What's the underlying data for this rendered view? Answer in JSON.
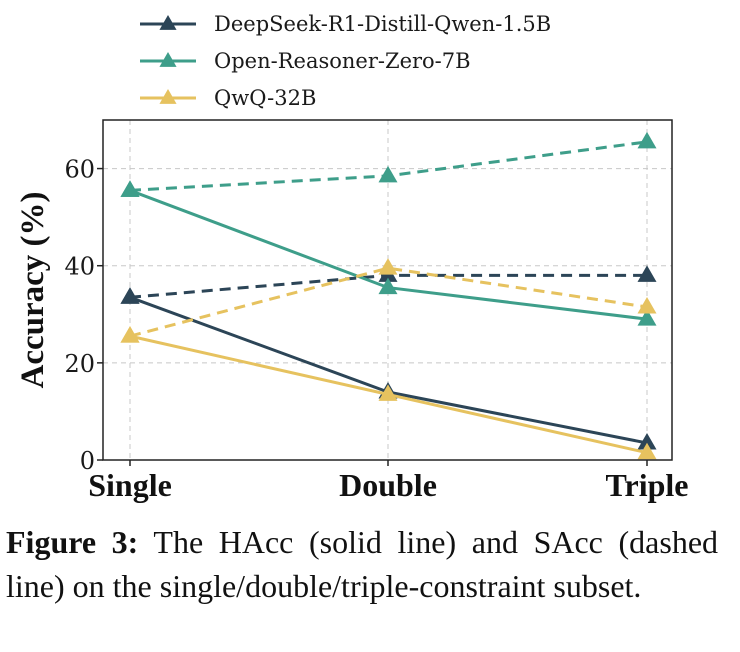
{
  "chart_data": {
    "type": "line",
    "categories": [
      "Single",
      "Double",
      "Triple"
    ],
    "ylabel": "Accuracy (%)",
    "ylim": [
      0,
      70
    ],
    "yticks": [
      0,
      20,
      40,
      60
    ],
    "grid": true,
    "legend_position": "top",
    "series": [
      {
        "name": "DeepSeek-R1-Distill-Qwen-1.5B",
        "color": "#2c4557",
        "solid": [
          33.5,
          14,
          3.5
        ],
        "dashed": [
          33.5,
          38,
          38
        ]
      },
      {
        "name": "Open-Reasoner-Zero-7B",
        "color": "#3e9e8a",
        "solid": [
          55.5,
          35.5,
          29
        ],
        "dashed": [
          55.5,
          58.5,
          65.5
        ]
      },
      {
        "name": "QwQ-32B",
        "color": "#e6c25f",
        "solid": [
          25.5,
          13.5,
          1.5
        ],
        "dashed": [
          25.5,
          39.5,
          31.5
        ]
      }
    ]
  },
  "caption": {
    "label": "Figure 3:",
    "text": "The HAcc (solid line) and SAcc (dashed line) on the single/double/triple-constraint subset."
  }
}
